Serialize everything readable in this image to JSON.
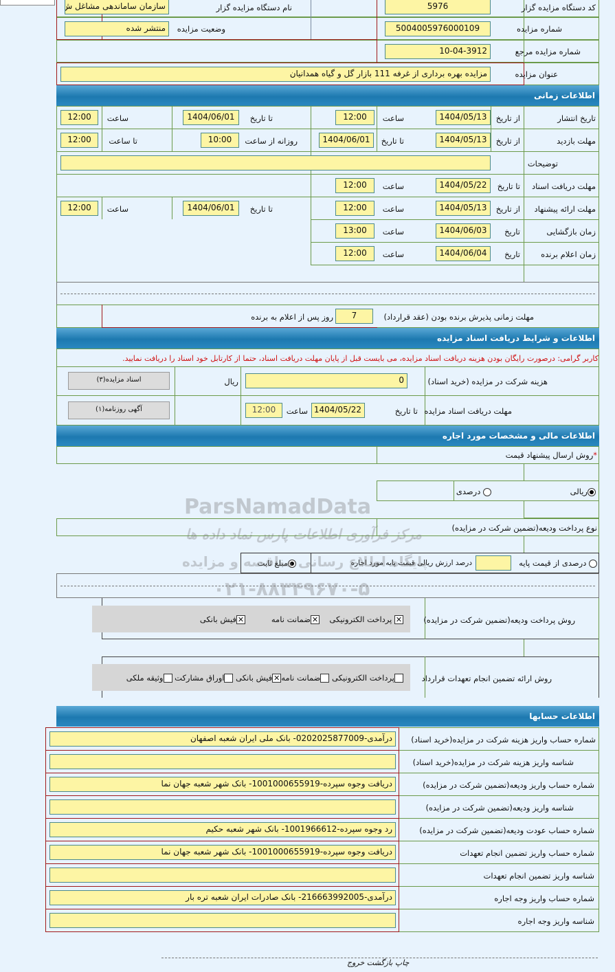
{
  "header_info": {
    "org_code_label": "کد دستگاه مزایده گزار",
    "org_code": "5976",
    "org_name_label": "نام دستگاه مزایده گزار",
    "org_name": "سازمان ساماندهی مشاغل ش",
    "auction_no_label": "شماره مزایده",
    "auction_no": "5004005976000109",
    "status_label": "وضعیت مزایده",
    "status": "منتشر شده",
    "ref_no_label": "شماره مزایده مرجع",
    "ref_no": "10-04-3912",
    "title_label": "عنوان مزایده",
    "title": "مزایده بهره برداری از غرفه 111 بازار گل و گیاه همدانیان"
  },
  "time_section": {
    "title": "اطلاعات زمانی",
    "from_date": "از تاریخ",
    "to_date": "تا تاریخ",
    "date": "تاریخ",
    "time": "ساعت",
    "daily_from": "روزانه از ساعت",
    "to_time": "تا ساعت",
    "publish": {
      "label": "تاریخ انتشار",
      "from": "1404/05/13",
      "from_time": "12:00",
      "to": "1404/06/01",
      "to_time": "12:00"
    },
    "visit": {
      "label": "مهلت بازدید",
      "from": "1404/05/13",
      "to": "1404/06/01",
      "daily_from": "10:00",
      "daily_to": "12:00"
    },
    "notes": {
      "label": "توضیحات",
      "value": ""
    },
    "docs": {
      "label": "مهلت دریافت اسناد",
      "to": "1404/05/22",
      "time": "12:00"
    },
    "offer": {
      "label": "مهلت ارائه پیشنهاد",
      "from": "1404/05/13",
      "from_time": "12:00",
      "to": "1404/06/01",
      "to_time": "12:00"
    },
    "opening": {
      "label": "زمان بازگشایی",
      "date": "1404/06/03",
      "time": "13:00"
    },
    "winner": {
      "label": "زمان اعلام برنده",
      "date": "1404/06/04",
      "time": "12:00"
    },
    "accept": {
      "label": "مهلت زمانی پذیرش برنده بودن (عقد قرارداد)",
      "days": "7",
      "suffix": "روز پس از اعلام به برنده"
    }
  },
  "docs_section": {
    "title": "اطلاعات و شرایط دریافت اسناد مزایده",
    "warning": "کاربر گرامی: درصورت رایگان بودن هزینه دریافت اسناد مزایده، می بایست قبل از پایان مهلت دریافت اسناد، حتما از کارتابل خود اسناد را دریافت نمایید.",
    "fee_label": "هزینه شرکت در مزایده (خرید اسناد)",
    "fee": "0",
    "currency": "ریال",
    "docs_button": "اسناد مزایده(۳)",
    "deadline_label": "مهلت دریافت اسناد مزایده",
    "to_date_label": "تا تاریخ",
    "deadline_date": "1404/05/22",
    "time_label": "ساعت",
    "deadline_time": "12:00",
    "ad_button": "آگهی روزنامه(۱)"
  },
  "finance_section": {
    "title": "اطلاعات مالی و مشخصات مورد اجاره",
    "price_method_label": "روش ارسال پیشنهاد قیمت",
    "required": "*",
    "rial": "ریالی",
    "percent": "درصدی",
    "rial_selected": true,
    "deposit_type_label": "نوع پرداخت ودیعه(تضمین شرکت در مزایده)",
    "base_percent": "درصدی از قیمت پایه",
    "base_percent_suffix": "درصد ارزش ریالی قیمت پایه مورد اجاره",
    "fixed": "مبلغ ثابت",
    "fixed_selected": true,
    "deposit_method_label": "روش پرداخت ودیعه(تضمین شرکت در مزایده)",
    "deposit_methods": [
      {
        "label": "پرداخت الکترونیکی",
        "checked": true
      },
      {
        "label": "ضمانت نامه",
        "checked": true
      },
      {
        "label": "فیش بانکی",
        "checked": true
      }
    ],
    "guarantee_label": "روش ارائه تضمین انجام تعهدات قرارداد",
    "guarantee_methods": [
      {
        "label": "پرداخت الکترونیکی",
        "checked": false
      },
      {
        "label": "ضمانت نامه",
        "checked": false
      },
      {
        "label": "فیش بانکی",
        "checked": true
      },
      {
        "label": "اوراق مشارکت",
        "checked": false
      },
      {
        "label": "وثیقه ملکی",
        "checked": false
      }
    ]
  },
  "accounts_section": {
    "title": "اطلاعات حسابها",
    "rows": [
      {
        "label": "شماره حساب واریز هزینه شرکت در مزایده(خرید اسناد)",
        "value": "درآمدی-0202025877009- بانک ملی ایران شعبه اصفهان"
      },
      {
        "label": "شناسه واریز هزینه شرکت در مزایده(خرید اسناد)",
        "value": ""
      },
      {
        "label": "شماره حساب واریز ودیعه(تضمین شرکت در مزایده)",
        "value": "دریافت وجوه سپرده-1001000655919- بانک شهر شعبه جهان نما"
      },
      {
        "label": "شناسه واریز ودیعه(تضمین شرکت در مزایده)",
        "value": ""
      },
      {
        "label": "شماره حساب عودت ودیعه(تضمین شرکت در مزایده)",
        "value": "رد وجوه سپرده-1001966612- بانک شهر شعبه حکیم"
      },
      {
        "label": "شماره حساب واریز تضمین انجام تعهدات",
        "value": "دریافت وجوه سپرده-1001000655919- بانک شهر شعبه جهان نما"
      },
      {
        "label": "شناسه واریز تضمین انجام تعهدات",
        "value": ""
      },
      {
        "label": "شماره حساب واریز وجه اجاره",
        "value": "درآمدی-216663992005- بانک صادرات ایران شعبه تره بار"
      },
      {
        "label": "شناسه واریز وجه اجاره",
        "value": ""
      }
    ]
  },
  "footer": {
    "print": "چاپ",
    "back": "بازگشت",
    "exit": "خروج"
  },
  "watermark": {
    "brand": "ParsNamadData",
    "tagline": "مرکز فرآوری اطلاعات پارس نماد داده ها",
    "portal": "پایگاه اطلاع رسانی مناقصه و مزایده",
    "phone": "۰۲۱-۸۸۳۴۹۶۷۰-۵"
  }
}
